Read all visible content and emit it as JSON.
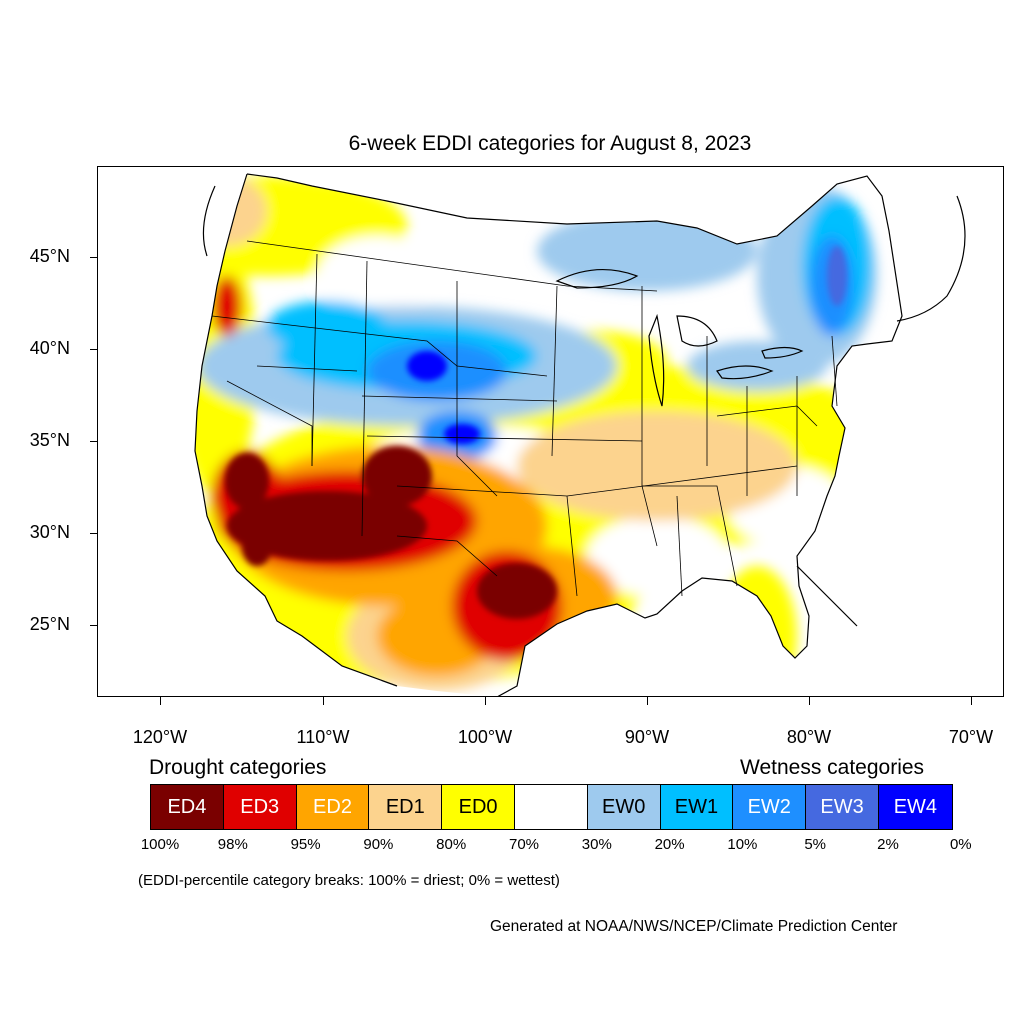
{
  "title": "6-week EDDI categories for August 8, 2023",
  "axes": {
    "x_labels": [
      "120°W",
      "110°W",
      "100°W",
      "90°W",
      "80°W",
      "70°W"
    ],
    "y_labels": [
      "45°N",
      "40°N",
      "35°N",
      "30°N",
      "25°N"
    ]
  },
  "legend": {
    "drought_heading": "Drought categories",
    "wetness_heading": "Wetness categories",
    "categories": [
      {
        "label": "ED4",
        "color": "#7a0000",
        "text_color": "#ffffff"
      },
      {
        "label": "ED3",
        "color": "#e00000",
        "text_color": "#ffffff"
      },
      {
        "label": "ED2",
        "color": "#ffa500",
        "text_color": "#ffffff"
      },
      {
        "label": "ED1",
        "color": "#fcd38e",
        "text_color": "#000000"
      },
      {
        "label": "ED0",
        "color": "#ffff00",
        "text_color": "#000000"
      },
      {
        "label": "",
        "color": "#ffffff",
        "text_color": "#000000"
      },
      {
        "label": "EW0",
        "color": "#9ecaee",
        "text_color": "#000000"
      },
      {
        "label": "EW1",
        "color": "#00bfff",
        "text_color": "#000000"
      },
      {
        "label": "EW2",
        "color": "#1e8fff",
        "text_color": "#ffffff"
      },
      {
        "label": "EW3",
        "color": "#4569e0",
        "text_color": "#ffffff"
      },
      {
        "label": "EW4",
        "color": "#0000ff",
        "text_color": "#ffffff"
      }
    ],
    "breaks": [
      "100%",
      "98%",
      "95%",
      "90%",
      "80%",
      "70%",
      "30%",
      "20%",
      "10%",
      "5%",
      "2%",
      "0%"
    ]
  },
  "note": "(EDDI-percentile category breaks: 100% = driest; 0% = wettest)",
  "credit": "Generated at NOAA/NWS/NCEP/Climate Prediction Center"
}
